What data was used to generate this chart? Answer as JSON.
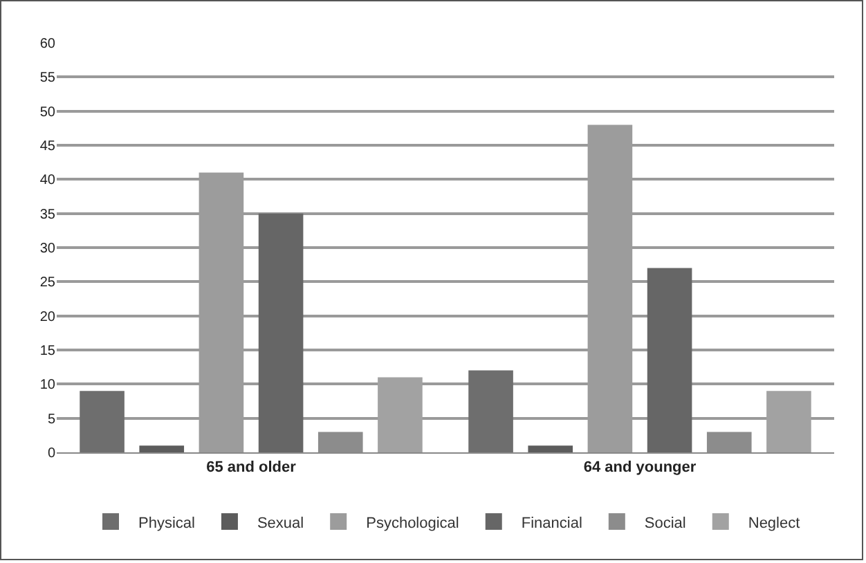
{
  "chart_data": {
    "type": "bar",
    "categories": [
      "65 and older",
      "64 and younger"
    ],
    "series": [
      {
        "name": "Physical",
        "color": "#6e6e6e",
        "values": [
          9,
          12
        ]
      },
      {
        "name": "Sexual",
        "color": "#5c5c5c",
        "values": [
          1,
          1
        ]
      },
      {
        "name": "Psychological",
        "color": "#9c9c9c",
        "values": [
          41,
          48
        ]
      },
      {
        "name": "Financial",
        "color": "#666666",
        "values": [
          35,
          27
        ]
      },
      {
        "name": "Social",
        "color": "#8c8c8c",
        "values": [
          3,
          3
        ]
      },
      {
        "name": "Neglect",
        "color": "#a2a2a2",
        "values": [
          11,
          9
        ]
      }
    ],
    "ylim": [
      0,
      60
    ],
    "yticks": [
      0,
      5,
      10,
      15,
      20,
      25,
      30,
      35,
      40,
      45,
      50,
      55,
      60
    ],
    "grid": "y",
    "legend": "bottom"
  }
}
